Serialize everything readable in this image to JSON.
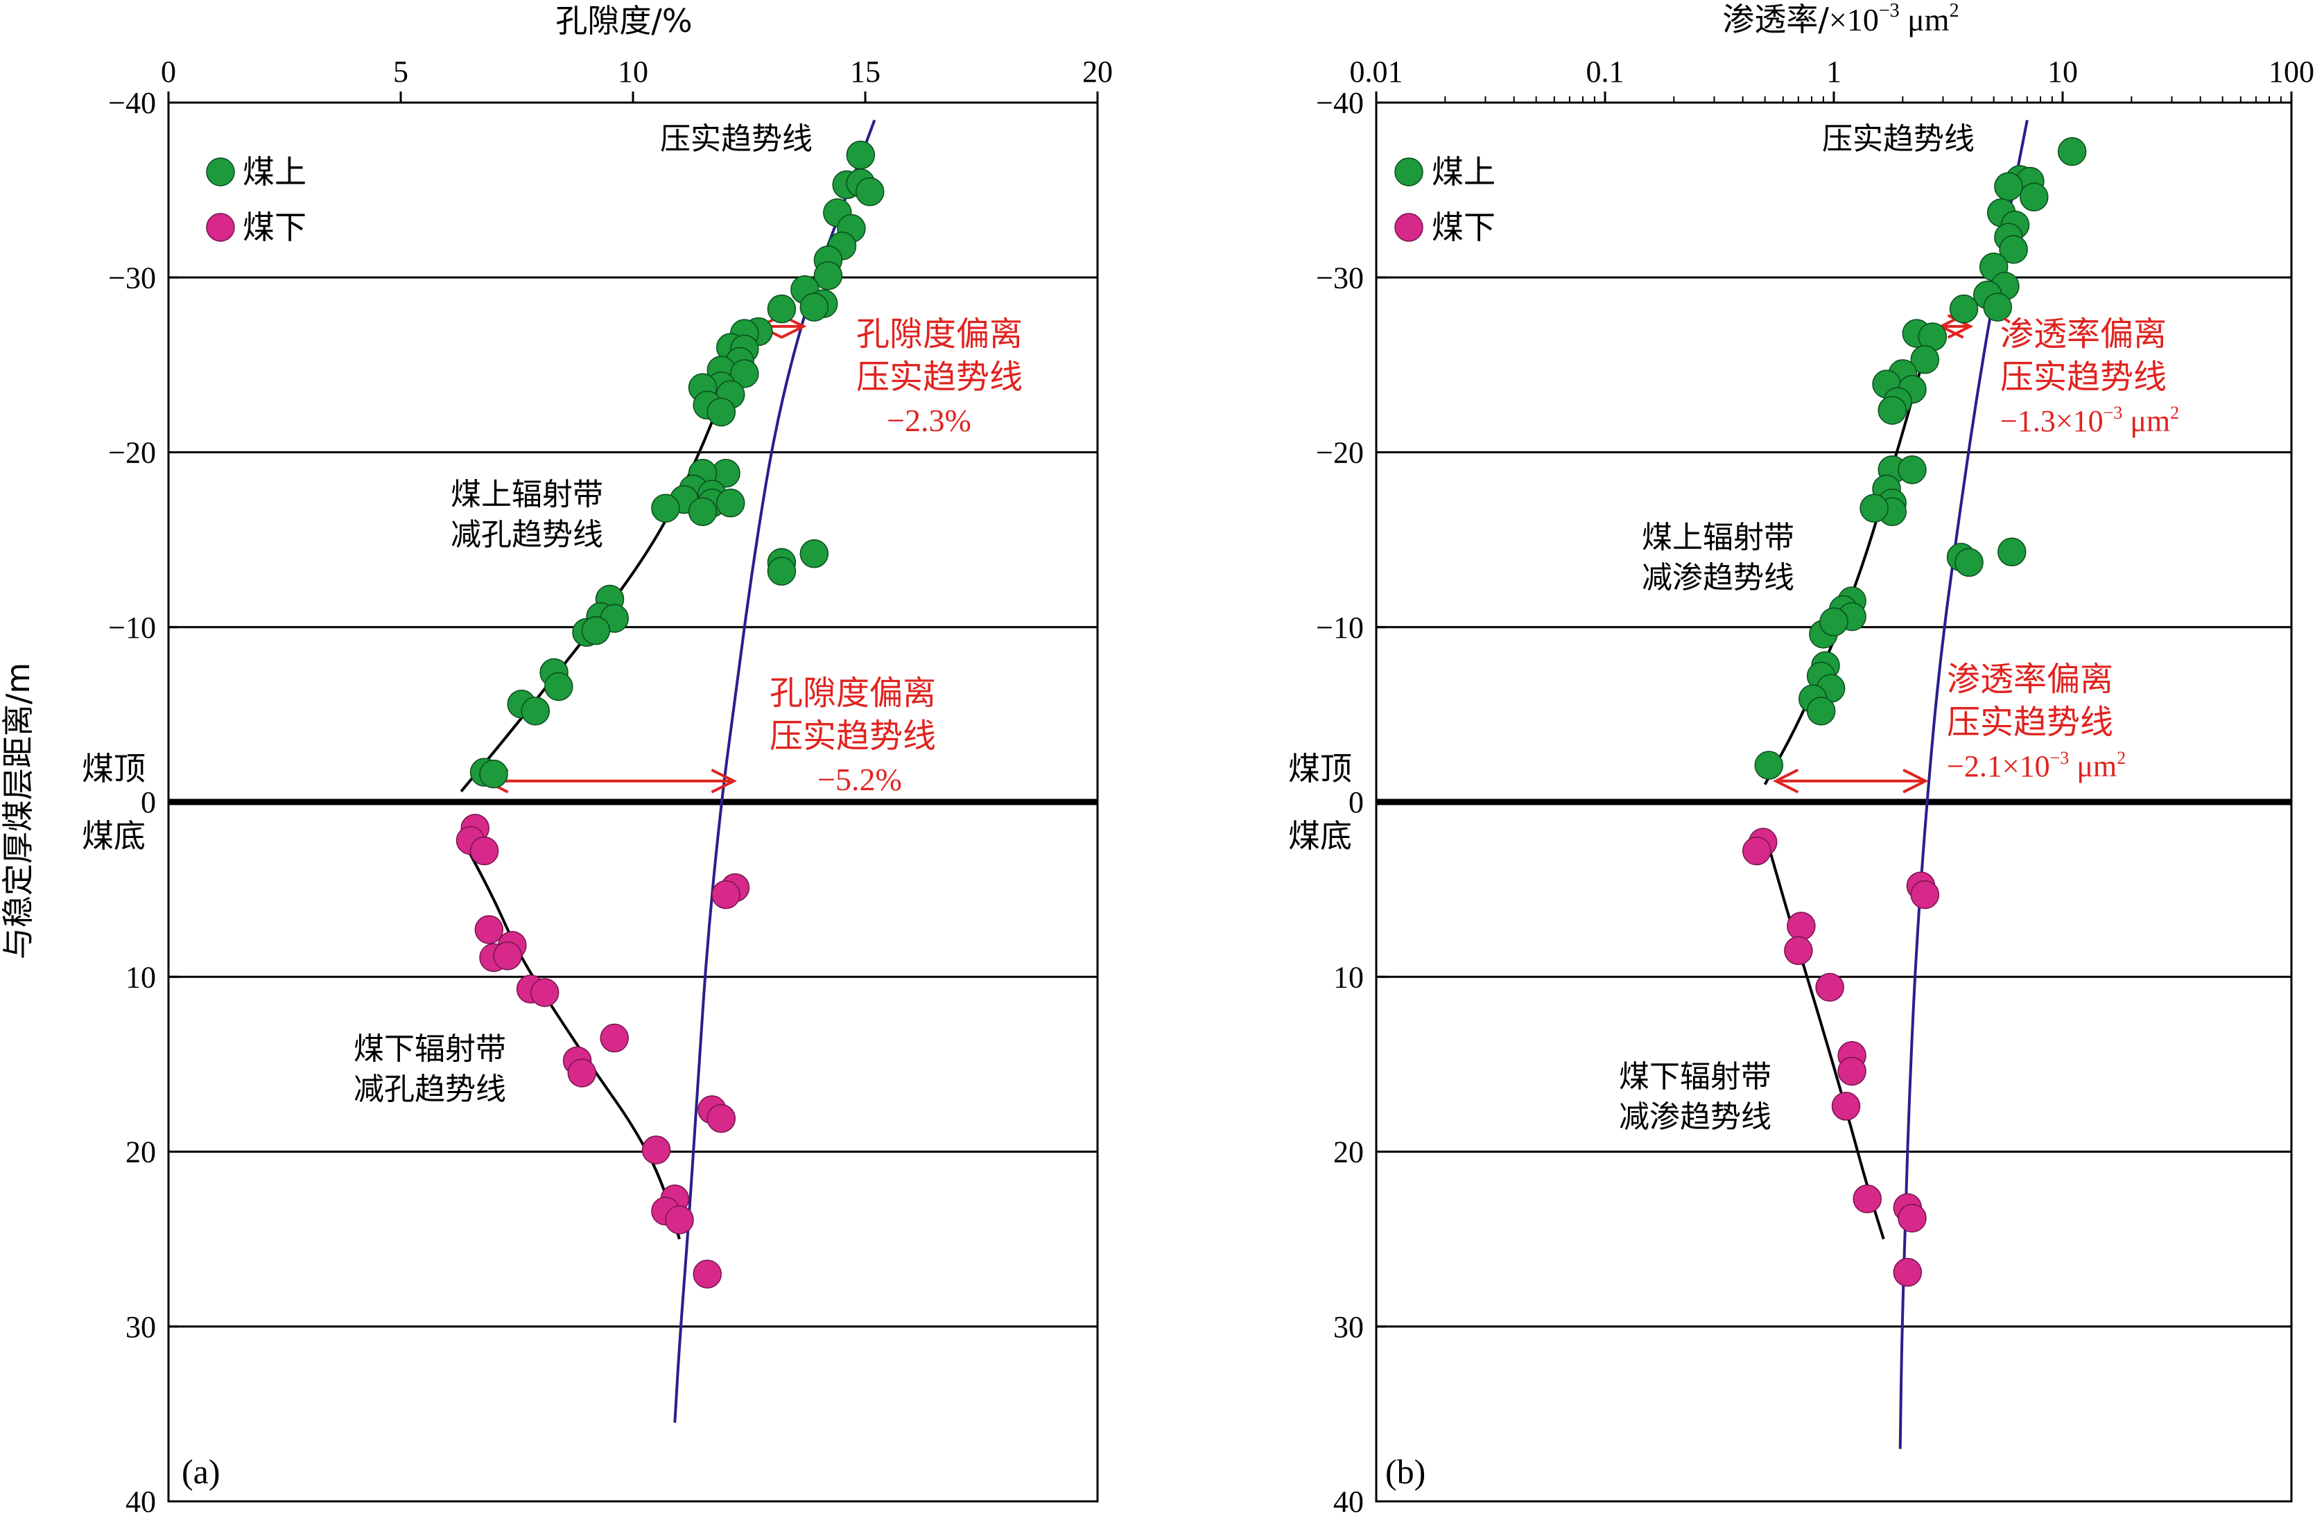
{
  "ylabel": "与稳定厚煤层距离/m",
  "seam_top_label": "煤顶",
  "seam_bottom_label": "煤底",
  "legend": [
    {
      "label": "煤上",
      "color": "#1c9a3c"
    },
    {
      "label": "煤下",
      "color": "#d6298a"
    }
  ],
  "colors": {
    "above": "#1c9a3c",
    "below": "#d6298a",
    "compaction": "#2a1f8c",
    "radiation": "#000000",
    "annotation": "#e0231f"
  },
  "chart_data": [
    {
      "panel_label": "(a)",
      "type": "scatter",
      "xlabel": "孔隙度/%",
      "x_scale": "linear",
      "xlim": [
        0,
        20
      ],
      "x_ticks": [
        "0",
        "5",
        "10",
        "15",
        "20"
      ],
      "ylim": [
        -40,
        40
      ],
      "y_ticks": [
        "−40",
        "−30",
        "−20",
        "−10",
        "0",
        "10",
        "20",
        "30",
        "40"
      ],
      "grid": "horizontal",
      "legend_position": "top-left",
      "series": [
        {
          "name": "煤上",
          "points": [
            [
              14.9,
              -37.0
            ],
            [
              14.6,
              -35.3
            ],
            [
              14.9,
              -35.4
            ],
            [
              15.1,
              -34.9
            ],
            [
              14.4,
              -33.7
            ],
            [
              14.7,
              -32.8
            ],
            [
              14.5,
              -31.8
            ],
            [
              14.2,
              -31.0
            ],
            [
              14.2,
              -30.1
            ],
            [
              13.7,
              -29.3
            ],
            [
              14.1,
              -28.5
            ],
            [
              13.9,
              -28.3
            ],
            [
              13.2,
              -28.2
            ],
            [
              12.7,
              -26.9
            ],
            [
              12.4,
              -26.8
            ],
            [
              12.1,
              -26.0
            ],
            [
              12.4,
              -25.9
            ],
            [
              12.3,
              -25.2
            ],
            [
              11.9,
              -24.7
            ],
            [
              12.4,
              -24.5
            ],
            [
              11.9,
              -23.8
            ],
            [
              11.5,
              -23.7
            ],
            [
              12.1,
              -23.3
            ],
            [
              11.6,
              -22.7
            ],
            [
              11.9,
              -22.3
            ],
            [
              12.0,
              -18.8
            ],
            [
              11.5,
              -18.8
            ],
            [
              11.3,
              -17.9
            ],
            [
              11.7,
              -17.6
            ],
            [
              11.1,
              -17.3
            ],
            [
              11.7,
              -17.1
            ],
            [
              12.1,
              -17.1
            ],
            [
              10.7,
              -16.8
            ],
            [
              11.5,
              -16.6
            ],
            [
              13.2,
              -13.7
            ],
            [
              13.9,
              -14.2
            ],
            [
              13.2,
              -13.2
            ],
            [
              9.5,
              -11.6
            ],
            [
              9.3,
              -10.6
            ],
            [
              9.6,
              -10.5
            ],
            [
              9.0,
              -9.7
            ],
            [
              9.2,
              -9.8
            ],
            [
              8.3,
              -7.4
            ],
            [
              8.4,
              -6.6
            ],
            [
              7.6,
              -5.6
            ],
            [
              7.9,
              -5.2
            ],
            [
              6.8,
              -1.7
            ],
            [
              7.0,
              -1.6
            ]
          ]
        },
        {
          "name": "煤下",
          "points": [
            [
              6.6,
              1.5
            ],
            [
              6.5,
              2.2
            ],
            [
              6.8,
              2.8
            ],
            [
              12.2,
              4.9
            ],
            [
              12.0,
              5.3
            ],
            [
              6.9,
              7.3
            ],
            [
              7.4,
              8.2
            ],
            [
              7.0,
              8.9
            ],
            [
              7.3,
              8.8
            ],
            [
              7.8,
              10.7
            ],
            [
              8.1,
              10.9
            ],
            [
              9.6,
              13.5
            ],
            [
              8.8,
              14.8
            ],
            [
              8.9,
              15.5
            ],
            [
              11.7,
              17.6
            ],
            [
              11.9,
              18.1
            ],
            [
              10.5,
              19.9
            ],
            [
              10.9,
              22.7
            ],
            [
              10.7,
              23.4
            ],
            [
              11.0,
              23.9
            ],
            [
              11.6,
              27.0
            ]
          ]
        }
      ],
      "trend_lines": [
        {
          "name": "压实趋势线",
          "points": [
            [
              15.2,
              -39
            ],
            [
              14.5,
              -34
            ],
            [
              13.8,
              -29
            ],
            [
              13.1,
              -22
            ],
            [
              12.6,
              -14
            ],
            [
              12.2,
              -6
            ],
            [
              11.9,
              0
            ],
            [
              11.6,
              8
            ],
            [
              11.4,
              16
            ],
            [
              11.2,
              24
            ],
            [
              11.0,
              31
            ],
            [
              10.9,
              35.5
            ]
          ]
        },
        {
          "name": "煤上辐射带减孔趋势线",
          "points": [
            [
              6.3,
              -0.6
            ],
            [
              7.3,
              -3.8
            ],
            [
              8.2,
              -6.8
            ],
            [
              9.3,
              -10.5
            ],
            [
              10.3,
              -14.2
            ],
            [
              11.0,
              -17.5
            ],
            [
              11.6,
              -21.0
            ],
            [
              12.1,
              -24.5
            ],
            [
              12.5,
              -27.0
            ]
          ]
        },
        {
          "name": "煤下辐射带减孔趋势线",
          "points": [
            [
              6.3,
              2.0
            ],
            [
              7.0,
              5.5
            ],
            [
              7.5,
              8.5
            ],
            [
              8.2,
              11.5
            ],
            [
              9.2,
              15.5
            ],
            [
              10.0,
              18.5
            ],
            [
              10.6,
              21.5
            ],
            [
              11.0,
              25.0
            ]
          ]
        }
      ],
      "labels": {
        "compaction": "压实趋势线",
        "above_trend": [
          "煤上辐射带",
          "减孔趋势线"
        ],
        "below_trend": [
          "煤下辐射带",
          "减孔趋势线"
        ],
        "deviation_top": [
          "孔隙度偏离",
          "压实趋势线",
          "−2.3%"
        ],
        "deviation_base": [
          "孔隙度偏离",
          "压实趋势线",
          "−5.2%"
        ]
      },
      "deviation_arrows": [
        {
          "from": 12.7,
          "to": 13.7,
          "y": -27.2
        },
        {
          "from": 6.8,
          "to": 12.2,
          "y": -1.2
        }
      ]
    },
    {
      "panel_label": "(b)",
      "type": "scatter",
      "xlabel_main": "渗透率/",
      "xlabel_unit_base": "×10",
      "xlabel_unit_exp": "−3",
      "xlabel_unit_tail": " μm",
      "xlabel_unit_sq": "2",
      "x_scale": "log",
      "xlim": [
        0.01,
        100
      ],
      "x_ticks": [
        "0.01",
        "0.1",
        "1",
        "10",
        "100"
      ],
      "ylim": [
        -40,
        40
      ],
      "y_ticks": [
        "−40",
        "−30",
        "−20",
        "−10",
        "0",
        "10",
        "20",
        "30",
        "40"
      ],
      "grid": "horizontal",
      "legend_position": "top-left",
      "series": [
        {
          "name": "煤上",
          "points": [
            [
              11,
              -37.2
            ],
            [
              6.5,
              -35.6
            ],
            [
              7.2,
              -35.5
            ],
            [
              5.8,
              -35.2
            ],
            [
              7.5,
              -34.6
            ],
            [
              5.4,
              -33.7
            ],
            [
              6.2,
              -33.0
            ],
            [
              5.8,
              -32.3
            ],
            [
              6.1,
              -31.6
            ],
            [
              5.0,
              -30.6
            ],
            [
              5.6,
              -29.5
            ],
            [
              4.7,
              -29.0
            ],
            [
              5.2,
              -28.3
            ],
            [
              3.7,
              -28.2
            ],
            [
              2.3,
              -26.8
            ],
            [
              2.7,
              -26.6
            ],
            [
              2.5,
              -25.3
            ],
            [
              2.0,
              -24.5
            ],
            [
              1.7,
              -23.9
            ],
            [
              2.2,
              -23.6
            ],
            [
              1.9,
              -22.9
            ],
            [
              1.8,
              -22.4
            ],
            [
              1.8,
              -19.0
            ],
            [
              2.2,
              -19.0
            ],
            [
              1.7,
              -17.9
            ],
            [
              1.8,
              -17.1
            ],
            [
              1.8,
              -16.6
            ],
            [
              1.5,
              -16.8
            ],
            [
              3.6,
              -14.0
            ],
            [
              3.9,
              -13.7
            ],
            [
              6.0,
              -14.3
            ],
            [
              1.2,
              -11.5
            ],
            [
              1.1,
              -11.0
            ],
            [
              1.2,
              -10.6
            ],
            [
              0.9,
              -9.6
            ],
            [
              1.0,
              -10.3
            ],
            [
              0.92,
              -7.8
            ],
            [
              0.88,
              -7.2
            ],
            [
              0.97,
              -6.5
            ],
            [
              0.81,
              -5.9
            ],
            [
              0.88,
              -5.2
            ],
            [
              0.52,
              -2.1
            ]
          ]
        },
        {
          "name": "煤下",
          "points": [
            [
              0.49,
              2.3
            ],
            [
              0.46,
              2.8
            ],
            [
              2.4,
              4.8
            ],
            [
              2.5,
              5.3
            ],
            [
              0.72,
              7.1
            ],
            [
              0.7,
              8.5
            ],
            [
              0.96,
              10.6
            ],
            [
              1.2,
              14.5
            ],
            [
              1.2,
              15.4
            ],
            [
              1.13,
              17.4
            ],
            [
              1.4,
              22.7
            ],
            [
              2.1,
              23.2
            ],
            [
              2.2,
              23.8
            ],
            [
              2.1,
              26.9
            ]
          ]
        }
      ],
      "trend_lines": [
        {
          "name": "压实趋势线",
          "points": [
            [
              7.0,
              -39
            ],
            [
              5.5,
              -32
            ],
            [
              4.3,
              -24
            ],
            [
              3.5,
              -16
            ],
            [
              2.9,
              -8
            ],
            [
              2.55,
              0
            ],
            [
              2.3,
              8
            ],
            [
              2.15,
              16
            ],
            [
              2.05,
              24
            ],
            [
              1.98,
              31
            ],
            [
              1.95,
              37
            ]
          ]
        },
        {
          "name": "煤上辐射带减渗趋势线",
          "points": [
            [
              0.5,
              -1.0
            ],
            [
              0.7,
              -4.5
            ],
            [
              0.95,
              -8.5
            ],
            [
              1.3,
              -13.0
            ],
            [
              1.7,
              -18.0
            ],
            [
              2.2,
              -23.0
            ],
            [
              2.6,
              -26.5
            ]
          ]
        },
        {
          "name": "煤下辐射带减渗趋势线",
          "points": [
            [
              0.5,
              1.8
            ],
            [
              0.65,
              7.0
            ],
            [
              0.85,
              12.0
            ],
            [
              1.1,
              17.0
            ],
            [
              1.4,
              22.0
            ],
            [
              1.65,
              25.0
            ]
          ]
        }
      ],
      "labels": {
        "compaction": "压实趋势线",
        "above_trend": [
          "煤上辐射带",
          "减渗趋势线"
        ],
        "below_trend": [
          "煤下辐射带",
          "减渗趋势线"
        ],
        "deviation_top_lines": [
          "渗透率偏离",
          "压实趋势线"
        ],
        "deviation_top_value": {
          "base": "−1.3×10",
          "exp": "−3",
          "tail": " μm",
          "sq": "2"
        },
        "deviation_base_lines": [
          "渗透率偏离",
          "压实趋势线"
        ],
        "deviation_base_value": {
          "base": "−2.1×10",
          "exp": "−3",
          "tail": " μm",
          "sq": "2"
        }
      },
      "deviation_arrows": [
        {
          "from": 2.9,
          "to": 4.0,
          "y": -27.2
        },
        {
          "from": 0.55,
          "to": 2.55,
          "y": -1.2
        }
      ]
    }
  ]
}
